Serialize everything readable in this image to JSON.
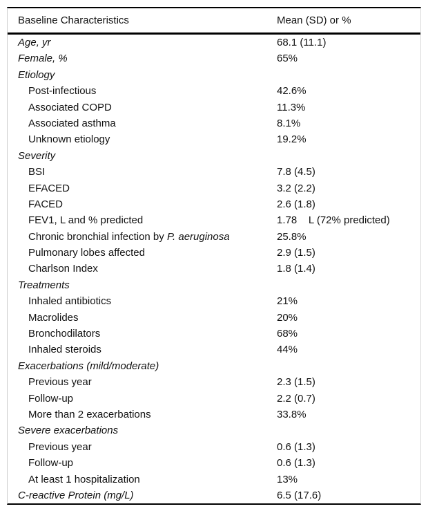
{
  "table": {
    "header": {
      "col1": "Baseline Characteristics",
      "col2": "Mean (SD) or %"
    },
    "rows": [
      {
        "label": "Age, yr",
        "value": "68.1 (11.1)",
        "indent": 0,
        "italic": true
      },
      {
        "label": "Female, %",
        "value": "65%",
        "indent": 0,
        "italic": true
      },
      {
        "label": "Etiology",
        "value": "",
        "indent": 0,
        "italic": true
      },
      {
        "label": "Post-infectious",
        "value": "42.6%",
        "indent": 1,
        "italic": false
      },
      {
        "label": "Associated COPD",
        "value": "11.3%",
        "indent": 1,
        "italic": false
      },
      {
        "label": "Associated asthma",
        "value": "8.1%",
        "indent": 1,
        "italic": false
      },
      {
        "label": "Unknown etiology",
        "value": "19.2%",
        "indent": 1,
        "italic": false
      },
      {
        "label": "Severity",
        "value": "",
        "indent": 0,
        "italic": true
      },
      {
        "label": "BSI",
        "value": "7.8 (4.5)",
        "indent": 1,
        "italic": false
      },
      {
        "label": "EFACED",
        "value": "3.2 (2.2)",
        "indent": 1,
        "italic": false
      },
      {
        "label": "FACED",
        "value": "2.6 (1.8)",
        "indent": 1,
        "italic": false
      },
      {
        "label": "FEV1, L and % predicted",
        "value": "1.78    L (72% predicted)",
        "indent": 1,
        "italic": false
      },
      {
        "label": "Chronic bronchial infection by ",
        "label_em": "P. aeruginosa",
        "value": "25.8%",
        "indent": 1,
        "italic": false
      },
      {
        "label": "Pulmonary lobes affected",
        "value": "2.9 (1.5)",
        "indent": 1,
        "italic": false
      },
      {
        "label": "Charlson Index",
        "value": "1.8 (1.4)",
        "indent": 1,
        "italic": false
      },
      {
        "label": "Treatments",
        "value": "",
        "indent": 0,
        "italic": true
      },
      {
        "label": "Inhaled antibiotics",
        "value": "21%",
        "indent": 1,
        "italic": false
      },
      {
        "label": "Macrolides",
        "value": "20%",
        "indent": 1,
        "italic": false
      },
      {
        "label": "Bronchodilators",
        "value": "68%",
        "indent": 1,
        "italic": false
      },
      {
        "label": "Inhaled steroids",
        "value": "44%",
        "indent": 1,
        "italic": false
      },
      {
        "label": "Exacerbations (mild/moderate)",
        "value": "",
        "indent": 0,
        "italic": true
      },
      {
        "label": "Previous year",
        "value": "2.3 (1.5)",
        "indent": 1,
        "italic": false
      },
      {
        "label": "Follow-up",
        "value": "2.2 (0.7)",
        "indent": 1,
        "italic": false
      },
      {
        "label": "More than 2 exacerbations",
        "value": "33.8%",
        "indent": 1,
        "italic": false
      },
      {
        "label": "Severe exacerbations",
        "value": "",
        "indent": 0,
        "italic": true
      },
      {
        "label": "Previous year",
        "value": "0.6 (1.3)",
        "indent": 1,
        "italic": false
      },
      {
        "label": "Follow-up",
        "value": "0.6 (1.3)",
        "indent": 1,
        "italic": false
      },
      {
        "label": "At least 1 hospitalization",
        "value": "13%",
        "indent": 1,
        "italic": false
      },
      {
        "label": "C-reactive Protein (mg/L)",
        "value": "6.5 (17.6)",
        "indent": 0,
        "italic": true
      }
    ]
  },
  "colors": {
    "rule_dark": "#000000",
    "border_light": "#cfcfcf",
    "text": "#111111",
    "background": "#ffffff"
  }
}
